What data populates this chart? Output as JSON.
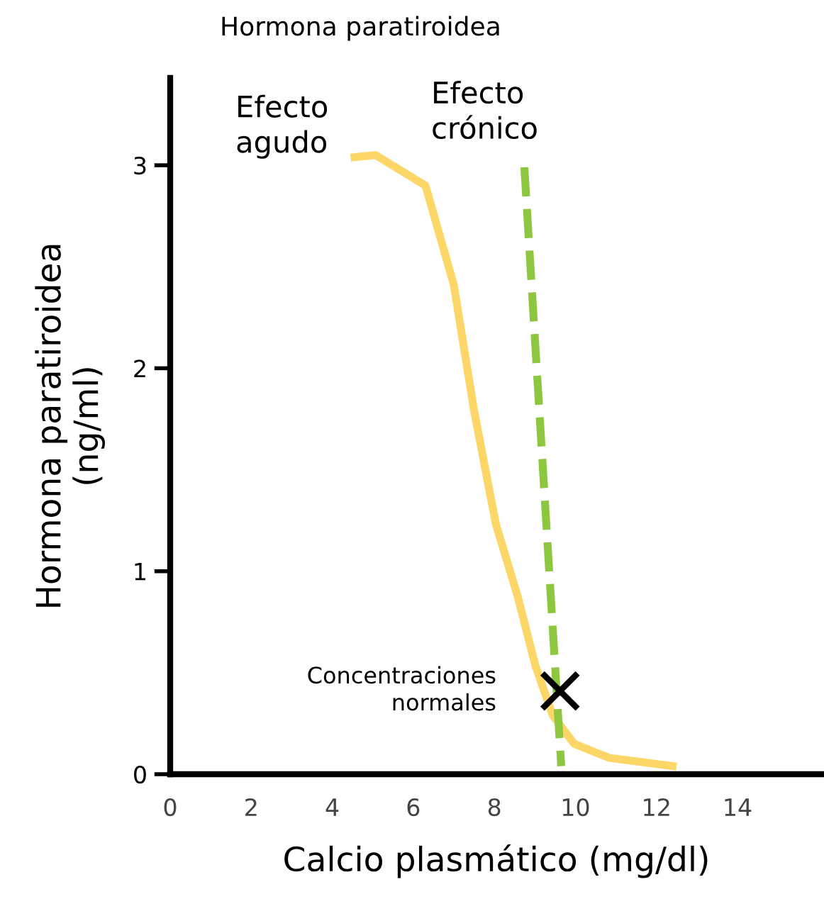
{
  "chart_data": {
    "type": "line",
    "title": "Hormona paratiroidea",
    "xlabel": "Calcio plasmático (mg/dl)",
    "ylabel": "Hormona paratiroidea\n(ng/ml)",
    "xlim": [
      0,
      16.1
    ],
    "ylim": [
      0,
      3.43
    ],
    "xticks": [
      0,
      2,
      4,
      6,
      8,
      10,
      12,
      14
    ],
    "yticks": [
      0,
      1,
      2,
      3
    ],
    "grid": false,
    "legend": false,
    "annotations": [
      "Efecto\nagudo",
      "Efecto\ncrónico",
      "Concentraciones\nnormales"
    ],
    "series": [
      {
        "color": "#fcd667",
        "line_style": "solid",
        "x": [
          4.55,
          5.07,
          6.3,
          7.0,
          7.5,
          8.04,
          8.57,
          9.02,
          9.44,
          9.97,
          10.84,
          12.4
        ],
        "values": [
          3.04,
          3.05,
          2.9,
          2.41,
          1.79,
          1.23,
          0.88,
          0.53,
          0.29,
          0.15,
          0.08,
          0.04
        ]
      },
      {
        "color": "#8dc63f",
        "line_style": "dashed",
        "x": [
          8.74,
          9.65
        ],
        "values": [
          2.99,
          0.04
        ]
      },
      {
        "type": "scatter",
        "color": "#000000",
        "marker": "cross",
        "x": [
          9.62
        ],
        "values": [
          0.41
        ]
      }
    ]
  }
}
